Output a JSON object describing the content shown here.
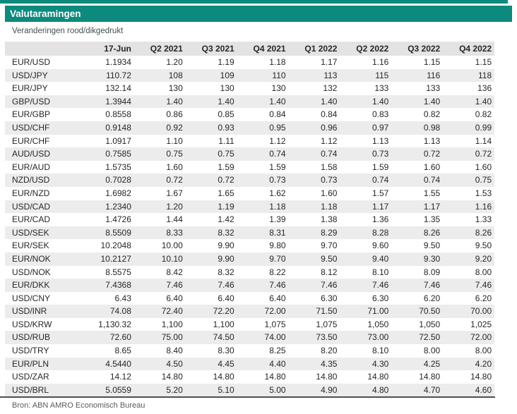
{
  "page": {
    "title": "Valutaramingen",
    "subtitle": "Veranderingen rood/dikgedrukt",
    "source": "Bron: ABN AMRO Economisch Bureau"
  },
  "colors": {
    "accent_teal": "#0b8a7d",
    "header_row_bg": "#e3e3e3",
    "zebra_row_bg": "#ececec",
    "bottom_rule": "#4f4f4f"
  },
  "chart_data": {
    "type": "table",
    "title": "Valutaramingen",
    "columns": [
      "",
      "17-Jun",
      "Q2 2021",
      "Q3 2021",
      "Q4 2021",
      "Q1 2022",
      "Q2 2022",
      "Q3 2022",
      "Q4 2022"
    ],
    "rows": [
      {
        "pair": "EUR/USD",
        "values": [
          "1.1934",
          "1.20",
          "1.19",
          "1.18",
          "1.17",
          "1.16",
          "1.15",
          "1.15"
        ]
      },
      {
        "pair": "USD/JPY",
        "values": [
          "110.72",
          "108",
          "109",
          "110",
          "113",
          "115",
          "116",
          "118"
        ]
      },
      {
        "pair": "EUR/JPY",
        "values": [
          "132.14",
          "130",
          "130",
          "130",
          "132",
          "133",
          "133",
          "136"
        ]
      },
      {
        "pair": "GBP/USD",
        "values": [
          "1.3944",
          "1.40",
          "1.40",
          "1.40",
          "1.40",
          "1.40",
          "1.40",
          "1.40"
        ]
      },
      {
        "pair": "EUR/GBP",
        "values": [
          "0.8558",
          "0.86",
          "0.85",
          "0.84",
          "0.84",
          "0.83",
          "0.82",
          "0.82"
        ]
      },
      {
        "pair": "USD/CHF",
        "values": [
          "0.9148",
          "0.92",
          "0.93",
          "0.95",
          "0.96",
          "0.97",
          "0.98",
          "0.99"
        ]
      },
      {
        "pair": "EUR/CHF",
        "values": [
          "1.0917",
          "1.10",
          "1.11",
          "1.12",
          "1.12",
          "1.13",
          "1.13",
          "1.14"
        ]
      },
      {
        "pair": "AUD/USD",
        "values": [
          "0.7585",
          "0.75",
          "0.75",
          "0.74",
          "0.74",
          "0.73",
          "0.72",
          "0.72"
        ]
      },
      {
        "pair": "EUR/AUD",
        "values": [
          "1.5735",
          "1.60",
          "1.59",
          "1.59",
          "1.58",
          "1.59",
          "1.60",
          "1.60"
        ]
      },
      {
        "pair": "NZD/USD",
        "values": [
          "0.7028",
          "0.72",
          "0.72",
          "0.73",
          "0.73",
          "0.74",
          "0.74",
          "0.75"
        ]
      },
      {
        "pair": "EUR/NZD",
        "values": [
          "1.6982",
          "1.67",
          "1.65",
          "1.62",
          "1.60",
          "1.57",
          "1.55",
          "1.53"
        ]
      },
      {
        "pair": "USD/CAD",
        "values": [
          "1.2340",
          "1.20",
          "1.19",
          "1.18",
          "1.18",
          "1.17",
          "1.17",
          "1.16"
        ]
      },
      {
        "pair": "EUR/CAD",
        "values": [
          "1.4726",
          "1.44",
          "1.42",
          "1.39",
          "1.38",
          "1.36",
          "1.35",
          "1.33"
        ]
      },
      {
        "pair": "USD/SEK",
        "values": [
          "8.5509",
          "8.33",
          "8.32",
          "8.31",
          "8.29",
          "8.28",
          "8.26",
          "8.26"
        ]
      },
      {
        "pair": "EUR/SEK",
        "values": [
          "10.2048",
          "10.00",
          "9.90",
          "9.80",
          "9.70",
          "9.60",
          "9.50",
          "9.50"
        ]
      },
      {
        "pair": "EUR/NOK",
        "values": [
          "10.2127",
          "10.10",
          "9.90",
          "9.70",
          "9.50",
          "9.40",
          "9.30",
          "9.20"
        ]
      },
      {
        "pair": "USD/NOK",
        "values": [
          "8.5575",
          "8.42",
          "8.32",
          "8.22",
          "8.12",
          "8.10",
          "8.09",
          "8.00"
        ]
      },
      {
        "pair": "EUR/DKK",
        "values": [
          "7.4368",
          "7.46",
          "7.46",
          "7.46",
          "7.46",
          "7.46",
          "7.46",
          "7.46"
        ]
      },
      {
        "pair": "USD/CNY",
        "values": [
          "6.43",
          "6.40",
          "6.40",
          "6.40",
          "6.30",
          "6.30",
          "6.20",
          "6.20"
        ]
      },
      {
        "pair": "USD/INR",
        "values": [
          "74.08",
          "72.40",
          "72.20",
          "72.00",
          "71.50",
          "71.00",
          "70.50",
          "70.00"
        ]
      },
      {
        "pair": "USD/KRW",
        "values": [
          "1,130.32",
          "1,100",
          "1,100",
          "1,075",
          "1,075",
          "1,050",
          "1,050",
          "1,025"
        ]
      },
      {
        "pair": "USD/RUB",
        "values": [
          "72.60",
          "75.00",
          "74.50",
          "74.00",
          "73.50",
          "73.00",
          "72.50",
          "72.00"
        ]
      },
      {
        "pair": "USD/TRY",
        "values": [
          "8.65",
          "8.40",
          "8.30",
          "8.25",
          "8.20",
          "8.10",
          "8.00",
          "8.00"
        ]
      },
      {
        "pair": "EUR/PLN",
        "values": [
          "4.5440",
          "4.50",
          "4.45",
          "4.40",
          "4.35",
          "4.30",
          "4.25",
          "4.20"
        ]
      },
      {
        "pair": "USD/ZAR",
        "values": [
          "14.12",
          "14.80",
          "14.80",
          "14.80",
          "14.80",
          "14.80",
          "14.80",
          "14.80"
        ]
      },
      {
        "pair": "USD/BRL",
        "values": [
          "5.0559",
          "5.20",
          "5.10",
          "5.00",
          "4.90",
          "4.80",
          "4.70",
          "4.60"
        ]
      }
    ]
  }
}
